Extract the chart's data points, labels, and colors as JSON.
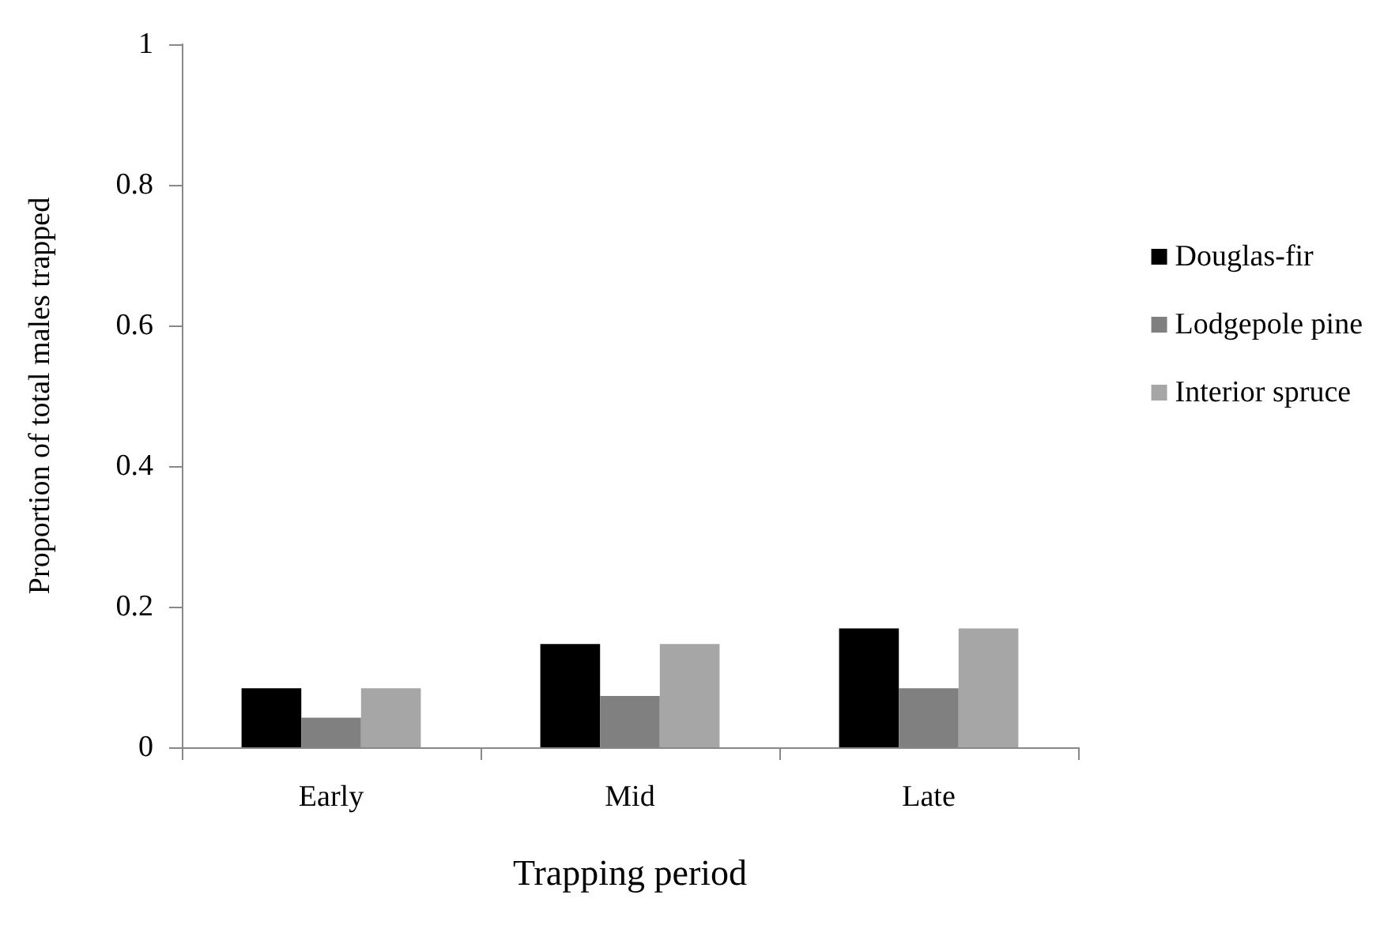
{
  "chart_data": {
    "type": "bar",
    "xlabel": "Trapping period",
    "ylabel": "Proportion of total males trapped",
    "categories": [
      "Early",
      "Mid",
      "Late"
    ],
    "series": [
      {
        "name": "Douglas-fir",
        "color": "#000000",
        "values": [
          0.084,
          0.147,
          0.169
        ]
      },
      {
        "name": "Lodgepole pine",
        "color": "#808080",
        "values": [
          0.042,
          0.073,
          0.084
        ]
      },
      {
        "name": "Interior spruce",
        "color": "#a6a6a6",
        "values": [
          0.084,
          0.147,
          0.169
        ]
      }
    ],
    "ylim": [
      0,
      1
    ],
    "yticks": [
      0,
      0.2,
      0.4,
      0.6,
      0.8,
      1
    ],
    "grid": false,
    "legend": "right"
  }
}
